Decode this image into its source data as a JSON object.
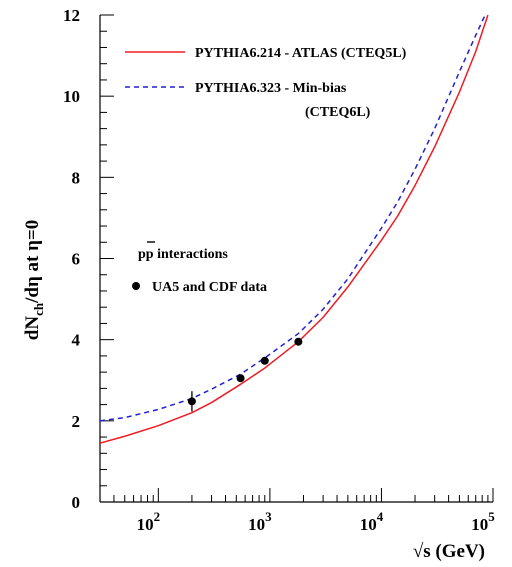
{
  "chart_data": {
    "type": "line",
    "title": "",
    "xlabel": "√s (GeV)",
    "ylabel": "dN_ch/dη at η=0",
    "ylabel_parts": {
      "main": "dN",
      "sub": "ch",
      "rest": "/dη at η=0"
    },
    "xscale": "log",
    "xlim": [
      30,
      100000
    ],
    "ylim": [
      0,
      12
    ],
    "x_ticks": [
      {
        "value": 100,
        "base": "10",
        "exp": "2"
      },
      {
        "value": 1000,
        "base": "10",
        "exp": "3"
      },
      {
        "value": 10000,
        "base": "10",
        "exp": "4"
      },
      {
        "value": 100000,
        "base": "10",
        "exp": "5"
      }
    ],
    "y_ticks": [
      0,
      2,
      4,
      6,
      8,
      10,
      12
    ],
    "grid": false,
    "legend_position": "top-left",
    "series": [
      {
        "name": "PYTHIA6.214 - ATLAS (CTEQ5L)",
        "style": "solid",
        "color": "#ee1c24",
        "x": [
          30,
          50,
          100,
          200,
          300,
          546,
          900,
          1800,
          3000,
          5000,
          10000,
          14000,
          20000,
          30000,
          50000,
          70000,
          90000
        ],
        "y": [
          1.45,
          1.62,
          1.88,
          2.2,
          2.45,
          2.9,
          3.3,
          3.95,
          4.55,
          5.3,
          6.45,
          7.05,
          7.8,
          8.75,
          10.1,
          11.1,
          12.0
        ]
      },
      {
        "name": "PYTHIA6.323 - Min-bias",
        "name_line2": "(CTEQ6L)",
        "style": "dashed",
        "color": "#1f1fd6",
        "x": [
          30,
          50,
          100,
          200,
          300,
          546,
          900,
          1800,
          3000,
          5000,
          10000,
          14000,
          20000,
          30000,
          50000,
          70000,
          85000
        ],
        "y": [
          2.0,
          2.08,
          2.28,
          2.55,
          2.78,
          3.15,
          3.55,
          4.15,
          4.75,
          5.5,
          6.75,
          7.4,
          8.2,
          9.2,
          10.6,
          11.5,
          12.0
        ]
      }
    ],
    "data_points": {
      "name": "UA5 and CDF data",
      "x": [
        200,
        546,
        900,
        1800
      ],
      "y": [
        2.48,
        3.05,
        3.48,
        3.95
      ],
      "yerr": [
        0.25,
        0.05,
        0.05,
        0.05
      ]
    },
    "annotations": {
      "process_main": "pp",
      "process_rest": " interactions"
    }
  }
}
